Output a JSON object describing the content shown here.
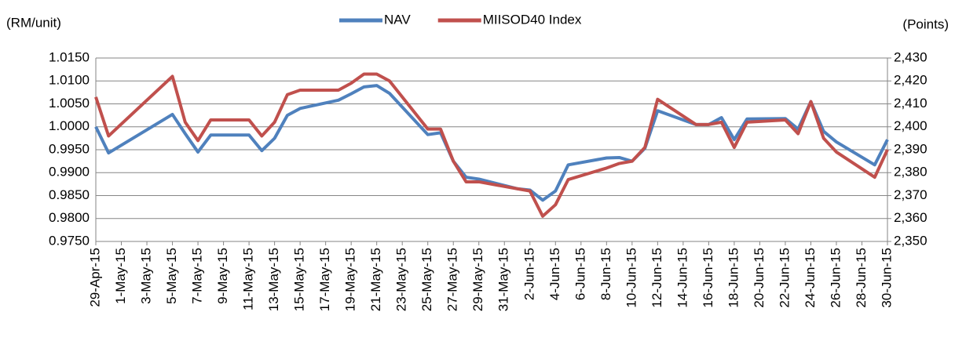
{
  "chart_data": {
    "type": "line",
    "y_label": "(RM/unit)",
    "y2_label": "(Points)",
    "x": [
      "29-Apr-15",
      "30-Apr-15",
      "5-May-15",
      "6-May-15",
      "7-May-15",
      "8-May-15",
      "11-May-15",
      "12-May-15",
      "13-May-15",
      "14-May-15",
      "15-May-15",
      "18-May-15",
      "19-May-15",
      "20-May-15",
      "21-May-15",
      "22-May-15",
      "25-May-15",
      "26-May-15",
      "27-May-15",
      "28-May-15",
      "29-May-15",
      "1-Jun-15",
      "2-Jun-15",
      "3-Jun-15",
      "4-Jun-15",
      "5-Jun-15",
      "8-Jun-15",
      "9-Jun-15",
      "10-Jun-15",
      "11-Jun-15",
      "12-Jun-15",
      "15-Jun-15",
      "16-Jun-15",
      "17-Jun-15",
      "18-Jun-15",
      "19-Jun-15",
      "22-Jun-15",
      "23-Jun-15",
      "24-Jun-15",
      "25-Jun-15",
      "26-Jun-15",
      "29-Jun-15",
      "30-Jun-15"
    ],
    "series": [
      {
        "name": "NAV",
        "color": "#4f81bd",
        "values": [
          1.0,
          0.9943,
          1.0027,
          0.9985,
          0.9945,
          0.9982,
          0.9982,
          0.9948,
          0.9975,
          1.0025,
          1.004,
          1.0058,
          1.0072,
          1.0087,
          1.009,
          1.0073,
          0.9983,
          0.9987,
          0.9925,
          0.989,
          0.9886,
          0.9865,
          0.9862,
          0.984,
          0.986,
          0.9917,
          0.9932,
          0.9933,
          0.9925,
          0.9953,
          1.0035,
          1.0005,
          1.0005,
          1.002,
          0.9972,
          1.0017,
          1.0018,
          0.9995,
          1.0055,
          0.999,
          0.9967,
          0.9917,
          0.9972
        ]
      },
      {
        "name": "MIISOD40 Index",
        "color": "#c0504d",
        "axis": "y2",
        "values": [
          2413,
          2396,
          2422,
          2402,
          2394,
          2403,
          2403,
          2396,
          2402,
          2414,
          2416,
          2416,
          2419,
          2423,
          2423,
          2420,
          2399,
          2399,
          2385,
          2376,
          2376,
          2373,
          2372,
          2361,
          2366,
          2377,
          2382,
          2384,
          2385,
          2391,
          2412,
          2401,
          2401,
          2402,
          2391,
          2402,
          2403,
          2397,
          2411,
          2395,
          2389,
          2378,
          2390
        ]
      }
    ],
    "xticks": [
      "29-Apr-15",
      "1-May-15",
      "3-May-15",
      "5-May-15",
      "7-May-15",
      "9-May-15",
      "11-May-15",
      "13-May-15",
      "15-May-15",
      "17-May-15",
      "19-May-15",
      "21-May-15",
      "23-May-15",
      "25-May-15",
      "27-May-15",
      "29-May-15",
      "31-May-15",
      "2-Jun-15",
      "4-Jun-15",
      "6-Jun-15",
      "8-Jun-15",
      "10-Jun-15",
      "12-Jun-15",
      "14-Jun-15",
      "16-Jun-15",
      "18-Jun-15",
      "20-Jun-15",
      "22-Jun-15",
      "24-Jun-15",
      "26-Jun-15",
      "28-Jun-15",
      "30-Jun-15"
    ],
    "ylim": [
      0.975,
      1.015
    ],
    "yticks": [
      {
        "value": 0.975,
        "label": "0.9750"
      },
      {
        "value": 0.98,
        "label": "0.9800"
      },
      {
        "value": 0.985,
        "label": "0.9850"
      },
      {
        "value": 0.99,
        "label": "0.9900"
      },
      {
        "value": 0.995,
        "label": "0.9950"
      },
      {
        "value": 1.0,
        "label": "1.0000"
      },
      {
        "value": 1.005,
        "label": "1.0050"
      },
      {
        "value": 1.01,
        "label": "1.0100"
      },
      {
        "value": 1.015,
        "label": "1.0150"
      }
    ],
    "y2lim": [
      2350,
      2430
    ],
    "y2ticks": [
      {
        "value": 2350,
        "label": "2,350"
      },
      {
        "value": 2360,
        "label": "2,360"
      },
      {
        "value": 2370,
        "label": "2,370"
      },
      {
        "value": 2380,
        "label": "2,380"
      },
      {
        "value": 2390,
        "label": "2,390"
      },
      {
        "value": 2400,
        "label": "2,400"
      },
      {
        "value": 2410,
        "label": "2,410"
      },
      {
        "value": 2420,
        "label": "2,420"
      },
      {
        "value": 2430,
        "label": "2,430"
      }
    ],
    "grid": true,
    "legend": "top"
  }
}
